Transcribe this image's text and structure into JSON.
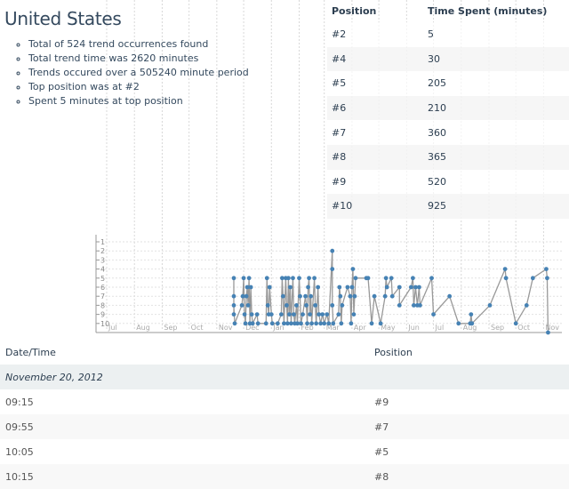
{
  "title": "United States",
  "stats": [
    "Total of 524 trend occurrences found",
    "Total trend time was 2620 minutes",
    "Trends occured over a 505240 minute period",
    "Top position was at #2",
    "Spent 5 minutes at top position"
  ],
  "position_table": {
    "headers": [
      "Position",
      "Time Spent (minutes)"
    ],
    "rows": [
      [
        "#2",
        "5"
      ],
      [
        "#4",
        "30"
      ],
      [
        "#5",
        "205"
      ],
      [
        "#6",
        "210"
      ],
      [
        "#7",
        "360"
      ],
      [
        "#8",
        "365"
      ],
      [
        "#9",
        "520"
      ],
      [
        "#10",
        "925"
      ]
    ]
  },
  "chart_data": {
    "type": "line",
    "color": "#4682b4",
    "line_color": "#999999",
    "grid": true,
    "x_ticks": [
      "Jul",
      "Aug",
      "Sep",
      "Oct",
      "Nov",
      "Dec",
      "Jan",
      "Feb",
      "Mar",
      "Apr",
      "May",
      "Jun",
      "Jul",
      "Aug",
      "Sep",
      "Oct",
      "Nov"
    ],
    "y_ticks": [
      "1",
      "2",
      "3",
      "4",
      "5",
      "6",
      "7",
      "8",
      "9",
      "10"
    ],
    "xlim": [
      "2012-07-01",
      "2013-11-18"
    ],
    "ylim": [
      1,
      10
    ],
    "y_reversed": true,
    "points": [
      [
        "2012-11-20",
        9
      ],
      [
        "2012-11-20",
        7
      ],
      [
        "2012-11-20",
        5
      ],
      [
        "2012-11-20",
        8
      ],
      [
        "2012-11-21",
        10
      ],
      [
        "2012-11-29",
        8
      ],
      [
        "2012-11-30",
        7
      ],
      [
        "2012-12-01",
        5
      ],
      [
        "2012-12-02",
        9
      ],
      [
        "2012-12-03",
        10
      ],
      [
        "2012-12-04",
        7
      ],
      [
        "2012-12-05",
        6
      ],
      [
        "2012-12-06",
        8
      ],
      [
        "2012-12-07",
        5
      ],
      [
        "2012-12-08",
        10
      ],
      [
        "2012-12-09",
        6
      ],
      [
        "2012-12-10",
        9
      ],
      [
        "2012-12-11",
        10
      ],
      [
        "2012-12-16",
        9
      ],
      [
        "2012-12-17",
        10
      ],
      [
        "2012-12-26",
        10
      ],
      [
        "2012-12-27",
        5
      ],
      [
        "2012-12-28",
        8
      ],
      [
        "2012-12-29",
        9
      ],
      [
        "2012-12-30",
        6
      ],
      [
        "2013-01-01",
        9
      ],
      [
        "2013-01-02",
        10
      ],
      [
        "2013-01-08",
        10
      ],
      [
        "2013-01-12",
        9
      ],
      [
        "2013-01-13",
        5
      ],
      [
        "2013-01-14",
        7
      ],
      [
        "2013-01-15",
        10
      ],
      [
        "2013-01-17",
        5
      ],
      [
        "2013-01-18",
        8
      ],
      [
        "2013-01-19",
        10
      ],
      [
        "2013-01-20",
        5
      ],
      [
        "2013-01-21",
        9
      ],
      [
        "2013-01-22",
        6
      ],
      [
        "2013-01-23",
        10
      ],
      [
        "2013-01-25",
        5
      ],
      [
        "2013-01-26",
        9
      ],
      [
        "2013-01-27",
        10
      ],
      [
        "2013-01-29",
        8
      ],
      [
        "2013-01-30",
        10
      ],
      [
        "2013-02-01",
        5
      ],
      [
        "2013-02-02",
        7
      ],
      [
        "2013-02-03",
        10
      ],
      [
        "2013-02-05",
        9
      ],
      [
        "2013-02-08",
        7
      ],
      [
        "2013-02-09",
        8
      ],
      [
        "2013-02-10",
        10
      ],
      [
        "2013-02-11",
        6
      ],
      [
        "2013-02-12",
        5
      ],
      [
        "2013-02-13",
        9
      ],
      [
        "2013-02-14",
        7
      ],
      [
        "2013-02-15",
        10
      ],
      [
        "2013-02-18",
        5
      ],
      [
        "2013-02-19",
        8
      ],
      [
        "2013-02-20",
        10
      ],
      [
        "2013-02-22",
        6
      ],
      [
        "2013-02-23",
        9
      ],
      [
        "2013-02-25",
        10
      ],
      [
        "2013-02-27",
        9
      ],
      [
        "2013-03-01",
        10
      ],
      [
        "2013-03-04",
        9
      ],
      [
        "2013-03-06",
        10
      ],
      [
        "2013-03-10",
        2
      ],
      [
        "2013-03-10",
        4
      ],
      [
        "2013-03-10",
        8
      ],
      [
        "2013-03-11",
        10
      ],
      [
        "2013-03-17",
        9
      ],
      [
        "2013-03-18",
        6
      ],
      [
        "2013-03-19",
        7
      ],
      [
        "2013-03-20",
        10
      ],
      [
        "2013-03-21",
        8
      ],
      [
        "2013-03-27",
        6
      ],
      [
        "2013-03-30",
        7
      ],
      [
        "2013-03-31",
        10
      ],
      [
        "2013-04-01",
        6
      ],
      [
        "2013-04-02",
        4
      ],
      [
        "2013-04-03",
        9
      ],
      [
        "2013-04-04",
        7
      ],
      [
        "2013-04-05",
        5
      ],
      [
        "2013-04-17",
        5
      ],
      [
        "2013-04-19",
        5
      ],
      [
        "2013-04-23",
        10
      ],
      [
        "2013-04-26",
        7
      ],
      [
        "2013-05-03",
        10
      ],
      [
        "2013-05-08",
        7
      ],
      [
        "2013-05-09",
        5
      ],
      [
        "2013-05-10",
        6
      ],
      [
        "2013-05-15",
        5
      ],
      [
        "2013-05-16",
        7
      ],
      [
        "2013-05-24",
        6
      ],
      [
        "2013-05-24",
        8
      ],
      [
        "2013-06-06",
        6
      ],
      [
        "2013-06-08",
        5
      ],
      [
        "2013-06-09",
        8
      ],
      [
        "2013-06-11",
        6
      ],
      [
        "2013-06-13",
        8
      ],
      [
        "2013-06-15",
        6
      ],
      [
        "2013-06-16",
        8
      ],
      [
        "2013-06-29",
        5
      ],
      [
        "2013-07-01",
        9
      ],
      [
        "2013-07-19",
        7
      ],
      [
        "2013-07-29",
        10
      ],
      [
        "2013-08-11",
        10
      ],
      [
        "2013-08-12",
        9
      ],
      [
        "2013-08-13",
        10
      ],
      [
        "2013-09-02",
        8
      ],
      [
        "2013-09-19",
        4
      ],
      [
        "2013-09-20",
        5
      ],
      [
        "2013-10-01",
        10
      ],
      [
        "2013-10-13",
        8
      ],
      [
        "2013-10-20",
        5
      ],
      [
        "2013-11-04",
        4
      ],
      [
        "2013-11-05",
        5
      ],
      [
        "2013-11-06",
        11
      ]
    ]
  },
  "history_table": {
    "headers": [
      "Date/Time",
      "Position"
    ],
    "group": "November 20, 2012",
    "rows": [
      [
        "09:15",
        "#9"
      ],
      [
        "09:55",
        "#7"
      ],
      [
        "10:05",
        "#5"
      ],
      [
        "10:15",
        "#8"
      ]
    ]
  }
}
